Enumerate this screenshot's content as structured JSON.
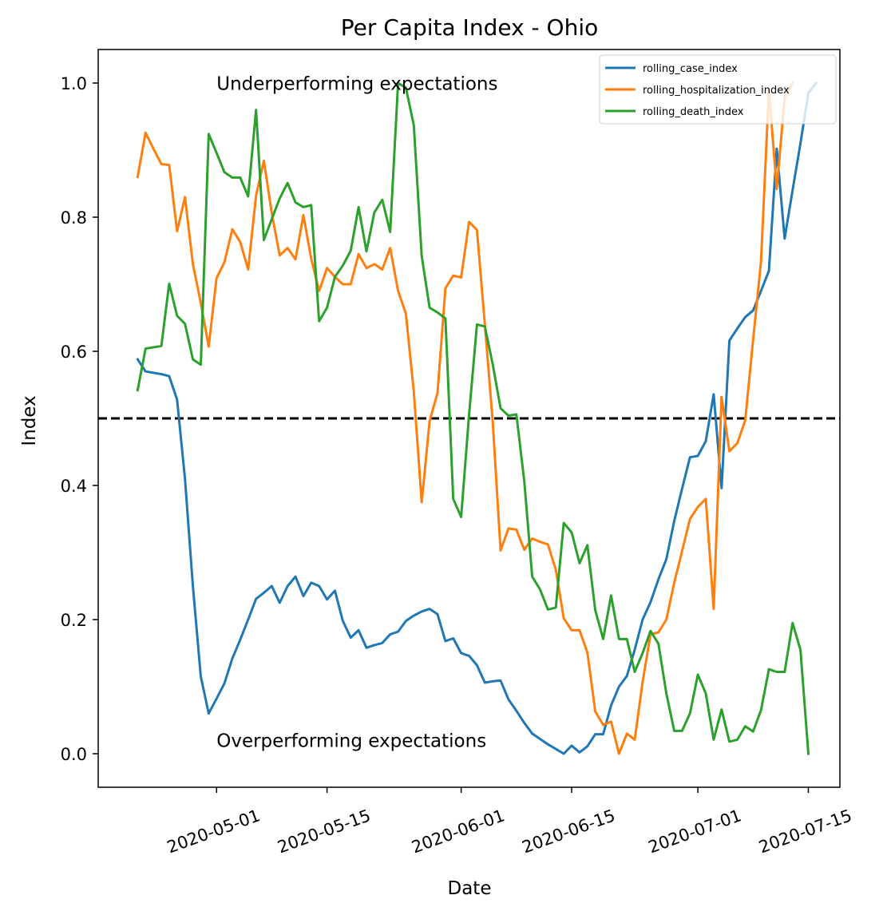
{
  "chart_data": {
    "type": "line",
    "title": "Per Capita Index - Ohio",
    "xlabel": "Date",
    "ylabel": "Index",
    "x_range": [
      "2020-04-16",
      "2020-07-19"
    ],
    "ylim": [
      -0.05,
      1.05
    ],
    "grid": false,
    "legend_position": "top-right",
    "x_ticks": [
      "2020-05-01",
      "2020-05-15",
      "2020-06-01",
      "2020-06-15",
      "2020-07-01",
      "2020-07-15"
    ],
    "y_ticks": [
      0.0,
      0.2,
      0.4,
      0.6,
      0.8,
      1.0
    ],
    "y_tick_labels": [
      "0.0",
      "0.2",
      "0.4",
      "0.6",
      "0.8",
      "1.0"
    ],
    "reference_line": {
      "y": 0.5,
      "style": "dashed",
      "color": "#000000"
    },
    "annotations": [
      {
        "text": "Underperforming expectations",
        "x": "2020-05-01",
        "y": 0.99
      },
      {
        "text": "Overperforming expectations",
        "x": "2020-05-01",
        "y": 0.01
      }
    ],
    "series": [
      {
        "name": "rolling_case_index",
        "color": "#1f77b4",
        "points": [
          [
            "2020-04-21",
            0.588
          ],
          [
            "2020-04-22",
            0.57
          ],
          [
            "2020-04-24",
            0.566
          ],
          [
            "2020-04-25",
            0.563
          ],
          [
            "2020-04-26",
            0.528
          ],
          [
            "2020-04-27",
            0.41
          ],
          [
            "2020-04-28",
            0.25
          ],
          [
            "2020-04-29",
            0.115
          ],
          [
            "2020-04-30",
            0.06
          ],
          [
            "2020-05-01",
            0.082
          ],
          [
            "2020-05-02",
            0.105
          ],
          [
            "2020-05-03",
            0.142
          ],
          [
            "2020-05-04",
            0.17
          ],
          [
            "2020-05-05",
            0.2
          ],
          [
            "2020-05-06",
            0.231
          ],
          [
            "2020-05-07",
            0.24
          ],
          [
            "2020-05-08",
            0.25
          ],
          [
            "2020-05-09",
            0.225
          ],
          [
            "2020-05-10",
            0.25
          ],
          [
            "2020-05-11",
            0.264
          ],
          [
            "2020-05-12",
            0.235
          ],
          [
            "2020-05-13",
            0.255
          ],
          [
            "2020-05-14",
            0.25
          ],
          [
            "2020-05-15",
            0.23
          ],
          [
            "2020-05-16",
            0.243
          ],
          [
            "2020-05-17",
            0.198
          ],
          [
            "2020-05-18",
            0.173
          ],
          [
            "2020-05-19",
            0.184
          ],
          [
            "2020-05-20",
            0.158
          ],
          [
            "2020-05-21",
            0.162
          ],
          [
            "2020-05-22",
            0.165
          ],
          [
            "2020-05-23",
            0.178
          ],
          [
            "2020-05-24",
            0.182
          ],
          [
            "2020-05-25",
            0.198
          ],
          [
            "2020-05-26",
            0.206
          ],
          [
            "2020-05-27",
            0.212
          ],
          [
            "2020-05-28",
            0.216
          ],
          [
            "2020-05-29",
            0.208
          ],
          [
            "2020-05-30",
            0.168
          ],
          [
            "2020-05-31",
            0.172
          ],
          [
            "2020-06-01",
            0.15
          ],
          [
            "2020-06-02",
            0.146
          ],
          [
            "2020-06-03",
            0.132
          ],
          [
            "2020-06-04",
            0.106
          ],
          [
            "2020-06-05",
            0.108
          ],
          [
            "2020-06-06",
            0.109
          ],
          [
            "2020-06-07",
            0.081
          ],
          [
            "2020-06-08",
            0.064
          ],
          [
            "2020-06-09",
            0.046
          ],
          [
            "2020-06-10",
            0.03
          ],
          [
            "2020-06-11",
            0.022
          ],
          [
            "2020-06-12",
            0.014
          ],
          [
            "2020-06-13",
            0.007
          ],
          [
            "2020-06-14",
            0.0
          ],
          [
            "2020-06-15",
            0.012
          ],
          [
            "2020-06-16",
            0.002
          ],
          [
            "2020-06-17",
            0.011
          ],
          [
            "2020-06-18",
            0.029
          ],
          [
            "2020-06-19",
            0.029
          ],
          [
            "2020-06-20",
            0.072
          ],
          [
            "2020-06-21",
            0.1
          ],
          [
            "2020-06-22",
            0.116
          ],
          [
            "2020-06-23",
            0.155
          ],
          [
            "2020-06-24",
            0.2
          ],
          [
            "2020-06-25",
            0.226
          ],
          [
            "2020-06-26",
            0.26
          ],
          [
            "2020-06-27",
            0.29
          ],
          [
            "2020-06-28",
            0.347
          ],
          [
            "2020-06-29",
            0.395
          ],
          [
            "2020-06-30",
            0.442
          ],
          [
            "2020-07-01",
            0.444
          ],
          [
            "2020-07-02",
            0.466
          ],
          [
            "2020-07-03",
            0.536
          ],
          [
            "2020-07-04",
            0.396
          ],
          [
            "2020-07-05",
            0.616
          ],
          [
            "2020-07-06",
            0.634
          ],
          [
            "2020-07-07",
            0.651
          ],
          [
            "2020-07-08",
            0.661
          ],
          [
            "2020-07-09",
            0.69
          ],
          [
            "2020-07-10",
            0.72
          ],
          [
            "2020-07-11",
            0.902
          ],
          [
            "2020-07-12",
            0.768
          ],
          [
            "2020-07-13",
            0.84
          ],
          [
            "2020-07-14",
            0.91
          ],
          [
            "2020-07-15",
            0.985
          ],
          [
            "2020-07-16",
            1.0
          ]
        ]
      },
      {
        "name": "rolling_hospitalization_index",
        "color": "#ff7f0e",
        "points": [
          [
            "2020-04-21",
            0.86
          ],
          [
            "2020-04-22",
            0.926
          ],
          [
            "2020-04-23",
            0.902
          ],
          [
            "2020-04-24",
            0.879
          ],
          [
            "2020-04-25",
            0.878
          ],
          [
            "2020-04-26",
            0.779
          ],
          [
            "2020-04-27",
            0.83
          ],
          [
            "2020-04-28",
            0.73
          ],
          [
            "2020-04-29",
            0.672
          ],
          [
            "2020-04-30",
            0.607
          ],
          [
            "2020-05-01",
            0.709
          ],
          [
            "2020-05-02",
            0.733
          ],
          [
            "2020-05-03",
            0.782
          ],
          [
            "2020-05-04",
            0.763
          ],
          [
            "2020-05-05",
            0.722
          ],
          [
            "2020-05-06",
            0.832
          ],
          [
            "2020-05-07",
            0.884
          ],
          [
            "2020-05-08",
            0.806
          ],
          [
            "2020-05-09",
            0.743
          ],
          [
            "2020-05-10",
            0.754
          ],
          [
            "2020-05-11",
            0.737
          ],
          [
            "2020-05-12",
            0.803
          ],
          [
            "2020-05-13",
            0.738
          ],
          [
            "2020-05-14",
            0.69
          ],
          [
            "2020-05-15",
            0.724
          ],
          [
            "2020-05-16",
            0.711
          ],
          [
            "2020-05-17",
            0.7
          ],
          [
            "2020-05-18",
            0.7
          ],
          [
            "2020-05-19",
            0.745
          ],
          [
            "2020-05-20",
            0.724
          ],
          [
            "2020-05-21",
            0.73
          ],
          [
            "2020-05-22",
            0.722
          ],
          [
            "2020-05-23",
            0.754
          ],
          [
            "2020-05-24",
            0.69
          ],
          [
            "2020-05-25",
            0.656
          ],
          [
            "2020-05-26",
            0.54
          ],
          [
            "2020-05-27",
            0.375
          ],
          [
            "2020-05-28",
            0.496
          ],
          [
            "2020-05-29",
            0.538
          ],
          [
            "2020-05-30",
            0.694
          ],
          [
            "2020-05-31",
            0.713
          ],
          [
            "2020-06-01",
            0.71
          ],
          [
            "2020-06-02",
            0.793
          ],
          [
            "2020-06-03",
            0.781
          ],
          [
            "2020-06-04",
            0.64
          ],
          [
            "2020-06-05",
            0.496
          ],
          [
            "2020-06-06",
            0.303
          ],
          [
            "2020-06-07",
            0.336
          ],
          [
            "2020-06-08",
            0.334
          ],
          [
            "2020-06-09",
            0.304
          ],
          [
            "2020-06-10",
            0.321
          ],
          [
            "2020-06-11",
            0.316
          ],
          [
            "2020-06-12",
            0.312
          ],
          [
            "2020-06-13",
            0.274
          ],
          [
            "2020-06-14",
            0.202
          ],
          [
            "2020-06-15",
            0.184
          ],
          [
            "2020-06-16",
            0.184
          ],
          [
            "2020-06-17",
            0.151
          ],
          [
            "2020-06-18",
            0.063
          ],
          [
            "2020-06-19",
            0.043
          ],
          [
            "2020-06-20",
            0.048
          ],
          [
            "2020-06-21",
            0.0
          ],
          [
            "2020-06-22",
            0.03
          ],
          [
            "2020-06-23",
            0.021
          ],
          [
            "2020-06-24",
            0.107
          ],
          [
            "2020-06-25",
            0.178
          ],
          [
            "2020-06-26",
            0.181
          ],
          [
            "2020-06-27",
            0.2
          ],
          [
            "2020-06-28",
            0.255
          ],
          [
            "2020-06-29",
            0.302
          ],
          [
            "2020-06-30",
            0.35
          ],
          [
            "2020-07-01",
            0.368
          ],
          [
            "2020-07-02",
            0.38
          ],
          [
            "2020-07-03",
            0.216
          ],
          [
            "2020-07-04",
            0.532
          ],
          [
            "2020-07-05",
            0.451
          ],
          [
            "2020-07-06",
            0.463
          ],
          [
            "2020-07-07",
            0.497
          ],
          [
            "2020-07-08",
            0.617
          ],
          [
            "2020-07-09",
            0.734
          ],
          [
            "2020-07-10",
            0.99
          ],
          [
            "2020-07-11",
            0.842
          ],
          [
            "2020-07-12",
            0.978
          ],
          [
            "2020-07-13",
            1.0
          ]
        ]
      },
      {
        "name": "rolling_death_index",
        "color": "#2ca02c",
        "points": [
          [
            "2020-04-21",
            0.542
          ],
          [
            "2020-04-22",
            0.604
          ],
          [
            "2020-04-24",
            0.608
          ],
          [
            "2020-04-25",
            0.701
          ],
          [
            "2020-04-26",
            0.653
          ],
          [
            "2020-04-27",
            0.641
          ],
          [
            "2020-04-28",
            0.588
          ],
          [
            "2020-04-29",
            0.58
          ],
          [
            "2020-04-30",
            0.924
          ],
          [
            "2020-05-01",
            0.896
          ],
          [
            "2020-05-02",
            0.867
          ],
          [
            "2020-05-03",
            0.859
          ],
          [
            "2020-05-04",
            0.859
          ],
          [
            "2020-05-05",
            0.831
          ],
          [
            "2020-05-06",
            0.96
          ],
          [
            "2020-05-07",
            0.766
          ],
          [
            "2020-05-08",
            0.797
          ],
          [
            "2020-05-09",
            0.828
          ],
          [
            "2020-05-10",
            0.851
          ],
          [
            "2020-05-11",
            0.822
          ],
          [
            "2020-05-12",
            0.815
          ],
          [
            "2020-05-13",
            0.818
          ],
          [
            "2020-05-14",
            0.645
          ],
          [
            "2020-05-15",
            0.665
          ],
          [
            "2020-05-16",
            0.711
          ],
          [
            "2020-05-17",
            0.728
          ],
          [
            "2020-05-18",
            0.75
          ],
          [
            "2020-05-19",
            0.815
          ],
          [
            "2020-05-20",
            0.749
          ],
          [
            "2020-05-21",
            0.807
          ],
          [
            "2020-05-22",
            0.826
          ],
          [
            "2020-05-23",
            0.778
          ],
          [
            "2020-05-24",
            1.0
          ],
          [
            "2020-05-25",
            0.993
          ],
          [
            "2020-05-26",
            0.937
          ],
          [
            "2020-05-27",
            0.742
          ],
          [
            "2020-05-28",
            0.665
          ],
          [
            "2020-05-29",
            0.658
          ],
          [
            "2020-05-30",
            0.649
          ],
          [
            "2020-05-31",
            0.38
          ],
          [
            "2020-06-01",
            0.353
          ],
          [
            "2020-06-02",
            0.505
          ],
          [
            "2020-06-03",
            0.64
          ],
          [
            "2020-06-04",
            0.637
          ],
          [
            "2020-06-05",
            0.581
          ],
          [
            "2020-06-06",
            0.515
          ],
          [
            "2020-06-07",
            0.504
          ],
          [
            "2020-06-08",
            0.506
          ],
          [
            "2020-06-09",
            0.406
          ],
          [
            "2020-06-10",
            0.264
          ],
          [
            "2020-06-11",
            0.245
          ],
          [
            "2020-06-12",
            0.215
          ],
          [
            "2020-06-13",
            0.218
          ],
          [
            "2020-06-14",
            0.344
          ],
          [
            "2020-06-15",
            0.33
          ],
          [
            "2020-06-16",
            0.284
          ],
          [
            "2020-06-17",
            0.311
          ],
          [
            "2020-06-18",
            0.214
          ],
          [
            "2020-06-19",
            0.171
          ],
          [
            "2020-06-20",
            0.236
          ],
          [
            "2020-06-21",
            0.171
          ],
          [
            "2020-06-22",
            0.171
          ],
          [
            "2020-06-23",
            0.122
          ],
          [
            "2020-06-24",
            0.15
          ],
          [
            "2020-06-25",
            0.183
          ],
          [
            "2020-06-26",
            0.164
          ],
          [
            "2020-06-27",
            0.09
          ],
          [
            "2020-06-28",
            0.034
          ],
          [
            "2020-06-29",
            0.034
          ],
          [
            "2020-06-30",
            0.06
          ],
          [
            "2020-07-01",
            0.118
          ],
          [
            "2020-07-02",
            0.09
          ],
          [
            "2020-07-03",
            0.021
          ],
          [
            "2020-07-04",
            0.066
          ],
          [
            "2020-07-05",
            0.018
          ],
          [
            "2020-07-06",
            0.021
          ],
          [
            "2020-07-07",
            0.041
          ],
          [
            "2020-07-08",
            0.033
          ],
          [
            "2020-07-09",
            0.065
          ],
          [
            "2020-07-10",
            0.126
          ],
          [
            "2020-07-11",
            0.122
          ],
          [
            "2020-07-12",
            0.122
          ],
          [
            "2020-07-13",
            0.195
          ],
          [
            "2020-07-14",
            0.155
          ],
          [
            "2020-07-15",
            0.0
          ]
        ]
      }
    ]
  }
}
